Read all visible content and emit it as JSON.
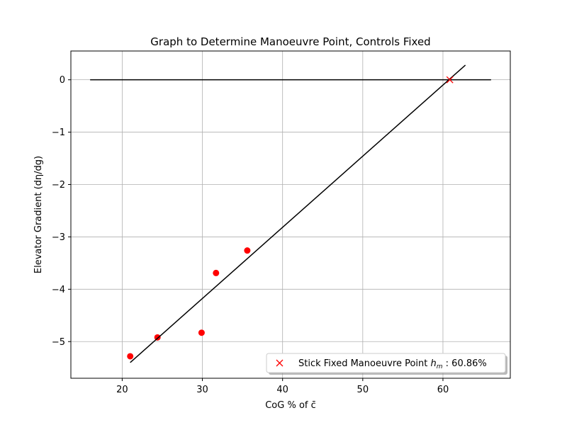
{
  "chart_data": {
    "type": "scatter",
    "title": "Graph to Determine Manoeuvre Point, Controls Fixed",
    "xlabel": "CoG % of c̄",
    "ylabel": "Elevator Gradient (dη/dg)",
    "xlim": [
      13.6,
      68.4
    ],
    "ylim": [
      -5.7,
      0.55
    ],
    "xticks": [
      20,
      30,
      40,
      50,
      60
    ],
    "yticks": [
      0,
      -1,
      -2,
      -3,
      -4,
      -5
    ],
    "xtick_labels": [
      "20",
      "30",
      "40",
      "50",
      "60"
    ],
    "ytick_labels": [
      "0",
      "−1",
      "−2",
      "−3",
      "−4",
      "−5"
    ],
    "grid": true,
    "legend_position": "lower-right",
    "series": [
      {
        "kind": "points",
        "color": "#ff0000",
        "marker": "circle",
        "x": [
          21.0,
          24.4,
          29.9,
          31.7,
          35.6
        ],
        "y": [
          -5.28,
          -4.92,
          -4.83,
          -3.69,
          -3.26
        ]
      },
      {
        "kind": "fit-line",
        "color": "#000000",
        "x": [
          21.0,
          62.8
        ],
        "y": [
          -5.4,
          0.28
        ]
      },
      {
        "kind": "zero-line",
        "color": "#000000",
        "x": [
          16.0,
          66.0
        ],
        "y": [
          0,
          0
        ]
      },
      {
        "kind": "manoeuvre-point",
        "color": "#ff0000",
        "marker": "x",
        "name": "Stick Fixed Manoeuvre Point h_m : 60.86%",
        "x": [
          60.86
        ],
        "y": [
          0
        ]
      }
    ],
    "legend": {
      "prefix": "Stick Fixed Manoeuvre Point ",
      "symbol": "h",
      "subscript": "m",
      "suffix": " : 60.86%"
    }
  }
}
